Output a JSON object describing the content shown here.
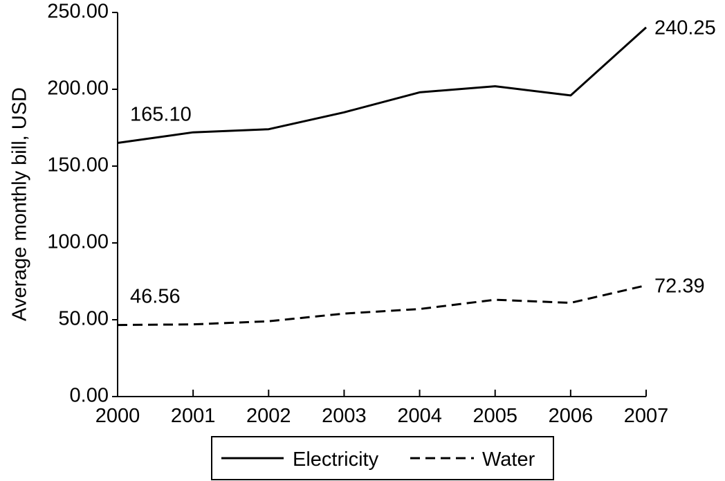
{
  "chart_data": {
    "type": "line",
    "title": "",
    "xlabel": "",
    "ylabel": "Average monthly bill, USD",
    "x": [
      "2000",
      "2001",
      "2002",
      "2003",
      "2004",
      "2005",
      "2006",
      "2007"
    ],
    "ylim": [
      0,
      250
    ],
    "yticks": [
      "0.00",
      "50.00",
      "100.00",
      "150.00",
      "200.00",
      "250.00"
    ],
    "ytick_values": [
      0,
      50,
      100,
      150,
      200,
      250
    ],
    "grid": false,
    "legend_position": "bottom-center",
    "series": [
      {
        "name": "Electricity",
        "style": "solid",
        "values": [
          165.1,
          172,
          174,
          185,
          198,
          202,
          196,
          240.25
        ]
      },
      {
        "name": "Water",
        "style": "dashed",
        "values": [
          46.56,
          47,
          49,
          54,
          57,
          63,
          61,
          72.39
        ]
      }
    ],
    "annotations": [
      {
        "series": "Electricity",
        "point": "2000",
        "text": "165.10"
      },
      {
        "series": "Electricity",
        "point": "2007",
        "text": "240.25"
      },
      {
        "series": "Water",
        "point": "2000",
        "text": "46.56"
      },
      {
        "series": "Water",
        "point": "2007",
        "text": "72.39"
      }
    ],
    "line_color": "#000000"
  }
}
